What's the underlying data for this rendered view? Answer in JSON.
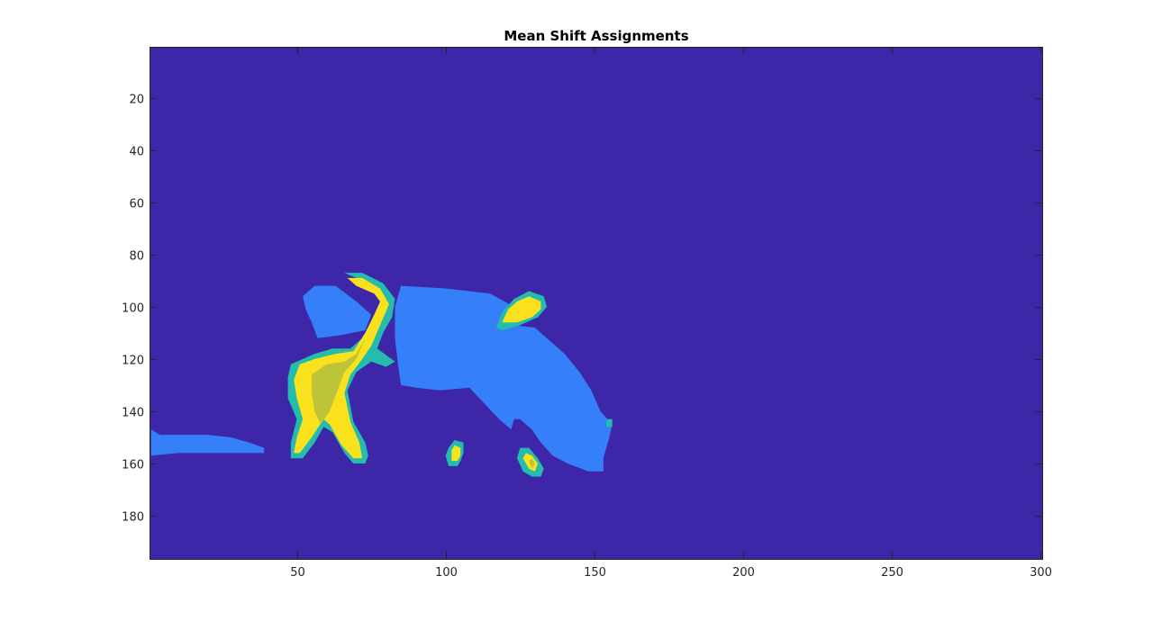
{
  "chart_data": {
    "type": "heatmap",
    "title": "Mean Shift Assignments",
    "xlabel": "",
    "ylabel": "",
    "xlim": [
      0.5,
      300.5
    ],
    "ylim": [
      0.5,
      196.5
    ],
    "y_direction": "reversed",
    "grid": false,
    "legend": "none",
    "xticks": [
      50,
      100,
      150,
      200,
      250,
      300
    ],
    "yticks": [
      20,
      40,
      60,
      80,
      100,
      120,
      140,
      160,
      180
    ],
    "cluster_colors": {
      "1": "#3e26a8",
      "2": "#357ff8",
      "3": "#23bcad",
      "4": "#bdc43a",
      "5": "#f9e11d"
    },
    "background_cluster": 1,
    "regions": [
      {
        "cluster": 2,
        "description": "cow body",
        "polygon": [
          [
            85,
            92
          ],
          [
            100,
            93
          ],
          [
            115,
            95
          ],
          [
            123,
            100
          ],
          [
            123,
            107
          ],
          [
            130,
            108
          ],
          [
            140,
            118
          ],
          [
            145,
            125
          ],
          [
            149,
            132
          ],
          [
            152,
            140
          ],
          [
            156,
            145
          ],
          [
            155,
            150
          ],
          [
            153,
            158
          ],
          [
            153,
            163
          ],
          [
            148,
            163
          ],
          [
            141,
            160
          ],
          [
            136,
            157
          ],
          [
            132,
            152
          ],
          [
            129,
            147
          ],
          [
            125,
            143
          ],
          [
            123,
            143
          ],
          [
            122,
            147
          ],
          [
            118,
            143
          ],
          [
            113,
            137
          ],
          [
            108,
            131
          ],
          [
            98,
            132
          ],
          [
            90,
            131
          ],
          [
            85,
            130
          ],
          [
            84,
            122
          ],
          [
            83,
            112
          ],
          [
            83,
            100
          ]
        ]
      },
      {
        "cluster": 2,
        "description": "cow head",
        "polygon": [
          [
            52,
            96
          ],
          [
            56,
            92
          ],
          [
            63,
            92
          ],
          [
            70,
            98
          ],
          [
            75,
            103
          ],
          [
            73,
            109
          ],
          [
            64,
            111
          ],
          [
            57,
            112
          ],
          [
            55,
            106
          ],
          [
            53,
            101
          ]
        ]
      },
      {
        "cluster": 2,
        "description": "ground patch",
        "polygon": [
          [
            1,
            147
          ],
          [
            4,
            149
          ],
          [
            10,
            149
          ],
          [
            20,
            149
          ],
          [
            28,
            150
          ],
          [
            34,
            152
          ],
          [
            39,
            154
          ],
          [
            39,
            156
          ],
          [
            20,
            156
          ],
          [
            10,
            156
          ],
          [
            1,
            157
          ]
        ]
      },
      {
        "cluster": 3,
        "description": "dog outline",
        "polygon": [
          [
            48,
            122
          ],
          [
            52,
            120
          ],
          [
            56,
            118
          ],
          [
            62,
            116
          ],
          [
            68,
            116
          ],
          [
            72,
            112
          ],
          [
            76,
            104
          ],
          [
            79,
            100
          ],
          [
            79,
            96
          ],
          [
            76,
            92
          ],
          [
            70,
            89
          ],
          [
            66,
            87
          ],
          [
            72,
            87
          ],
          [
            79,
            91
          ],
          [
            83,
            97
          ],
          [
            82,
            104
          ],
          [
            79,
            110
          ],
          [
            77,
            116
          ],
          [
            83,
            121
          ],
          [
            80,
            123
          ],
          [
            75,
            121
          ],
          [
            70,
            125
          ],
          [
            67,
            132
          ],
          [
            69,
            144
          ],
          [
            73,
            152
          ],
          [
            74,
            157
          ],
          [
            73,
            160
          ],
          [
            69,
            160
          ],
          [
            66,
            156
          ],
          [
            62,
            148
          ],
          [
            59,
            146
          ],
          [
            56,
            152
          ],
          [
            52,
            158
          ],
          [
            48,
            158
          ],
          [
            48,
            152
          ],
          [
            50,
            143
          ],
          [
            47,
            135
          ],
          [
            47,
            127
          ]
        ]
      },
      {
        "cluster": 5,
        "description": "dog body",
        "polygon": [
          [
            51,
            122
          ],
          [
            56,
            120
          ],
          [
            63,
            118
          ],
          [
            69,
            117
          ],
          [
            73,
            110
          ],
          [
            76,
            103
          ],
          [
            78,
            98
          ],
          [
            76,
            95
          ],
          [
            70,
            92
          ],
          [
            67,
            89
          ],
          [
            72,
            89
          ],
          [
            78,
            93
          ],
          [
            81,
            99
          ],
          [
            78,
            107
          ],
          [
            75,
            115
          ],
          [
            72,
            120
          ],
          [
            68,
            126
          ],
          [
            66,
            133
          ],
          [
            68,
            144
          ],
          [
            71,
            152
          ],
          [
            72,
            158
          ],
          [
            69,
            158
          ],
          [
            65,
            153
          ],
          [
            61,
            145
          ],
          [
            59,
            143
          ],
          [
            55,
            150
          ],
          [
            51,
            156
          ],
          [
            49,
            156
          ],
          [
            50,
            150
          ],
          [
            52,
            143
          ],
          [
            50,
            135
          ],
          [
            49,
            128
          ]
        ]
      },
      {
        "cluster": 4,
        "description": "dog inner",
        "polygon": [
          [
            55,
            126
          ],
          [
            60,
            122
          ],
          [
            66,
            121
          ],
          [
            70,
            118
          ],
          [
            73,
            112
          ],
          [
            70,
            120
          ],
          [
            66,
            125
          ],
          [
            63,
            134
          ],
          [
            61,
            140
          ],
          [
            58,
            145
          ],
          [
            56,
            140
          ],
          [
            55,
            133
          ]
        ]
      },
      {
        "cluster": 3,
        "description": "blob right outline",
        "polygon": [
          [
            117,
            108
          ],
          [
            119,
            102
          ],
          [
            123,
            97
          ],
          [
            128,
            94
          ],
          [
            133,
            96
          ],
          [
            134,
            100
          ],
          [
            131,
            104
          ],
          [
            125,
            107
          ],
          [
            119,
            109
          ]
        ]
      },
      {
        "cluster": 5,
        "description": "blob right",
        "polygon": [
          [
            119,
            106
          ],
          [
            121,
            101
          ],
          [
            124,
            98
          ],
          [
            128,
            96
          ],
          [
            132,
            98
          ],
          [
            132,
            101
          ],
          [
            129,
            104
          ],
          [
            124,
            106
          ]
        ]
      },
      {
        "cluster": 3,
        "description": "small blob 1 outline",
        "polygon": [
          [
            101,
            154
          ],
          [
            103,
            151
          ],
          [
            106,
            152
          ],
          [
            106,
            156
          ],
          [
            105,
            159
          ],
          [
            104,
            161
          ],
          [
            101,
            161
          ],
          [
            100,
            157
          ]
        ]
      },
      {
        "cluster": 5,
        "description": "small blob 1",
        "polygon": [
          [
            102,
            155
          ],
          [
            103,
            153
          ],
          [
            105,
            154
          ],
          [
            105,
            157
          ],
          [
            104,
            159
          ],
          [
            102,
            159
          ]
        ]
      },
      {
        "cluster": 3,
        "description": "small blob 2 outline",
        "polygon": [
          [
            124,
            158
          ],
          [
            125,
            154
          ],
          [
            128,
            154
          ],
          [
            131,
            158
          ],
          [
            133,
            162
          ],
          [
            132,
            165
          ],
          [
            129,
            165
          ],
          [
            126,
            163
          ]
        ]
      },
      {
        "cluster": 5,
        "description": "small blob 2",
        "polygon": [
          [
            126,
            158
          ],
          [
            127,
            156
          ],
          [
            129,
            157
          ],
          [
            131,
            160
          ],
          [
            130,
            163
          ],
          [
            128,
            162
          ]
        ]
      },
      {
        "cluster": 4,
        "description": "small blob 2 inner",
        "polygon": [
          [
            128,
            159
          ],
          [
            129,
            158
          ],
          [
            130,
            160
          ],
          [
            129,
            162
          ]
        ]
      },
      {
        "cluster": 3,
        "description": "speck",
        "polygon": [
          [
            154,
            143
          ],
          [
            156,
            143
          ],
          [
            156,
            146
          ],
          [
            154,
            146
          ]
        ]
      }
    ]
  }
}
